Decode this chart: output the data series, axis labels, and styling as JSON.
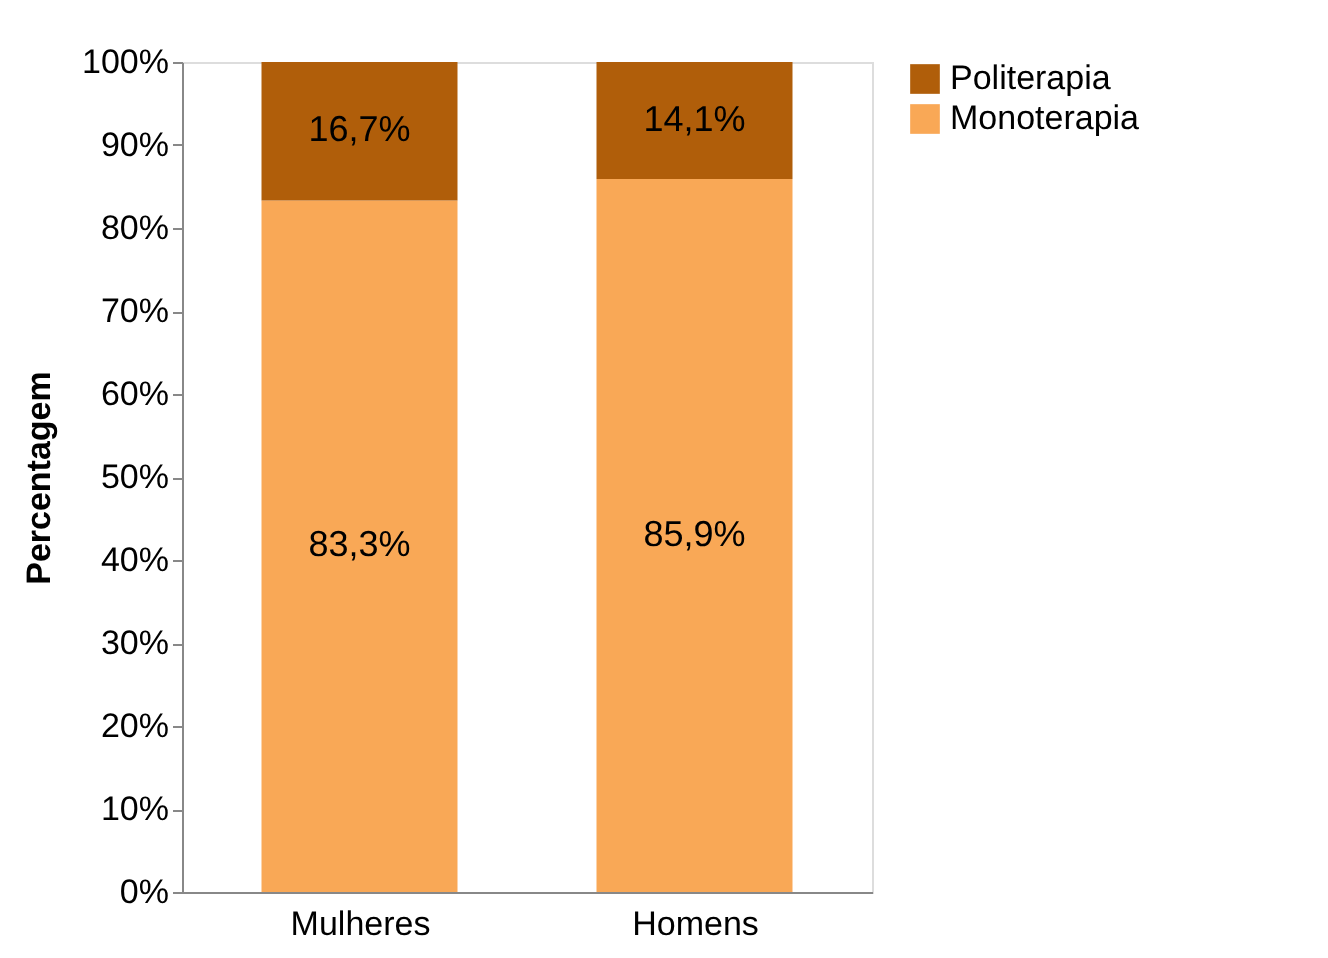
{
  "chart_data": {
    "type": "bar",
    "stacked": true,
    "ylabel": "Percentagem",
    "categories": [
      "Mulheres",
      "Homens"
    ],
    "series": [
      {
        "name": "Monoterapia",
        "color": "#f9a856",
        "values": [
          83.3,
          85.9
        ],
        "value_labels": [
          "83,3%",
          "85,9%"
        ]
      },
      {
        "name": "Politerapia",
        "color": "#b05e0a",
        "values": [
          16.7,
          14.1
        ],
        "value_labels": [
          "16,7%",
          "14,1%"
        ]
      }
    ],
    "ylim": [
      0,
      100
    ],
    "yticks": [
      {
        "value": 0,
        "label": "0%"
      },
      {
        "value": 10,
        "label": "10%"
      },
      {
        "value": 20,
        "label": "20%"
      },
      {
        "value": 30,
        "label": "30%"
      },
      {
        "value": 40,
        "label": "40%"
      },
      {
        "value": 50,
        "label": "50%"
      },
      {
        "value": 60,
        "label": "60%"
      },
      {
        "value": 70,
        "label": "70%"
      },
      {
        "value": 80,
        "label": "80%"
      },
      {
        "value": 90,
        "label": "90%"
      },
      {
        "value": 100,
        "label": "100%"
      }
    ],
    "grid": false,
    "legend": "right"
  }
}
